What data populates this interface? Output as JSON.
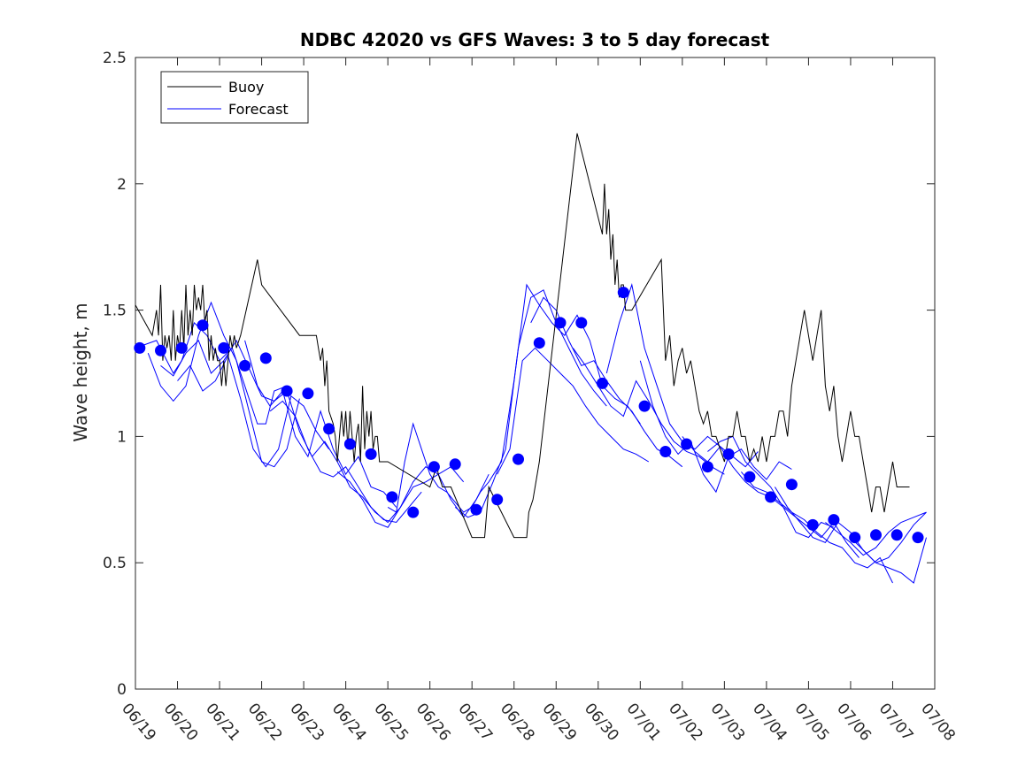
{
  "chart_data": {
    "type": "line",
    "title": "NDBC 42020 vs GFS Waves: 3 to 5 day forecast",
    "xlabel": "",
    "ylabel": "Wave height, m",
    "xlim": [
      "06/19",
      "07/08"
    ],
    "ylim": [
      0,
      2.5
    ],
    "x_tick_labels": [
      "06/19",
      "06/20",
      "06/21",
      "06/22",
      "06/23",
      "06/24",
      "06/25",
      "06/26",
      "06/27",
      "06/28",
      "06/29",
      "06/30",
      "07/01",
      "07/02",
      "07/03",
      "07/04",
      "07/05",
      "07/06",
      "07/07",
      "07/08"
    ],
    "y_ticks": [
      0,
      0.5,
      1,
      1.5,
      2,
      2.5
    ],
    "y_tick_labels": [
      "0",
      "0.5",
      "1",
      "1.5",
      "2",
      "2.5"
    ],
    "grid": false,
    "legend_position": "top-left",
    "legend": [
      {
        "name": "Buoy",
        "color": "#000000"
      },
      {
        "name": "Forecast",
        "color": "#0000ff"
      }
    ],
    "series": [
      {
        "name": "Buoy",
        "color": "#000000",
        "note_x": "day offset from 06/19",
        "x": [
          0,
          0.4,
          0.5,
          0.55,
          0.6,
          0.65,
          0.7,
          0.75,
          0.8,
          0.85,
          0.9,
          0.95,
          1.0,
          1.05,
          1.1,
          1.15,
          1.2,
          1.25,
          1.3,
          1.35,
          1.4,
          1.45,
          1.5,
          1.55,
          1.6,
          1.65,
          1.7,
          1.75,
          1.8,
          1.85,
          1.9,
          1.95,
          2.0,
          2.05,
          2.1,
          2.15,
          2.2,
          2.25,
          2.3,
          2.35,
          2.4,
          2.5,
          2.9,
          3.0,
          3.9,
          4.3,
          4.35,
          4.4,
          4.45,
          4.5,
          4.55,
          4.6,
          4.7,
          4.75,
          4.8,
          4.85,
          4.9,
          4.95,
          5.0,
          5.05,
          5.1,
          5.15,
          5.2,
          5.25,
          5.3,
          5.35,
          5.4,
          5.45,
          5.5,
          5.55,
          5.6,
          5.65,
          5.7,
          5.75,
          5.8,
          6.0,
          7.0,
          7.1,
          7.15,
          7.2,
          7.3,
          7.4,
          7.5,
          8.0,
          8.3,
          8.4,
          9.0,
          9.3,
          9.35,
          9.45,
          9.5,
          9.6,
          10.5,
          11.1,
          11.15,
          11.2,
          11.25,
          11.3,
          11.35,
          11.4,
          11.45,
          11.5,
          11.55,
          11.6,
          11.65,
          11.7,
          11.75,
          11.8,
          12.5,
          12.6,
          12.7,
          12.8,
          12.9,
          13.0,
          13.1,
          13.2,
          13.3,
          13.4,
          13.5,
          13.6,
          13.7,
          13.8,
          13.9,
          14.0,
          14.1,
          14.2,
          14.3,
          14.4,
          14.5,
          14.6,
          14.7,
          14.8,
          14.9,
          15.0,
          15.1,
          15.2,
          15.3,
          15.4,
          15.5,
          15.6,
          15.7,
          15.8,
          15.9,
          16.0,
          16.1,
          16.2,
          16.3,
          16.4,
          16.5,
          16.6,
          16.7,
          16.8,
          16.9,
          17.0,
          17.1,
          17.2,
          17.3,
          17.4,
          17.5,
          17.6,
          17.7,
          17.8,
          17.9,
          18.0,
          18.1,
          18.2,
          18.3,
          18.4
        ],
        "y": [
          1.52,
          1.4,
          1.5,
          1.4,
          1.6,
          1.3,
          1.4,
          1.35,
          1.4,
          1.3,
          1.5,
          1.3,
          1.4,
          1.35,
          1.5,
          1.35,
          1.6,
          1.4,
          1.5,
          1.4,
          1.6,
          1.5,
          1.55,
          1.5,
          1.6,
          1.45,
          1.5,
          1.3,
          1.4,
          1.3,
          1.35,
          1.3,
          1.3,
          1.2,
          1.3,
          1.2,
          1.3,
          1.4,
          1.35,
          1.4,
          1.35,
          1.4,
          1.7,
          1.6,
          1.4,
          1.4,
          1.35,
          1.3,
          1.35,
          1.2,
          1.3,
          1.1,
          1.05,
          1.0,
          0.9,
          1.0,
          1.1,
          1.0,
          1.1,
          0.95,
          1.1,
          1.0,
          0.9,
          1.0,
          1.05,
          0.9,
          1.2,
          0.95,
          1.1,
          1.0,
          1.1,
          0.95,
          1.0,
          1.0,
          0.9,
          0.9,
          0.8,
          0.85,
          0.9,
          0.85,
          0.8,
          0.8,
          0.8,
          0.6,
          0.6,
          0.8,
          0.6,
          0.6,
          0.7,
          0.75,
          0.8,
          0.9,
          2.2,
          1.8,
          2.0,
          1.8,
          1.9,
          1.7,
          1.8,
          1.6,
          1.7,
          1.55,
          1.6,
          1.6,
          1.5,
          1.5,
          1.5,
          1.5,
          1.7,
          1.3,
          1.4,
          1.2,
          1.3,
          1.35,
          1.25,
          1.3,
          1.2,
          1.1,
          1.05,
          1.1,
          1.0,
          1.0,
          0.95,
          0.9,
          1.0,
          1.0,
          1.1,
          1.0,
          1.0,
          0.9,
          0.95,
          0.9,
          1.0,
          0.9,
          1.0,
          1.0,
          1.1,
          1.1,
          1.0,
          1.2,
          1.3,
          1.4,
          1.5,
          1.4,
          1.3,
          1.4,
          1.5,
          1.2,
          1.1,
          1.2,
          1.0,
          0.9,
          1.0,
          1.1,
          1.0,
          1.0,
          0.9,
          0.8,
          0.7,
          0.8,
          0.8,
          0.7,
          0.8,
          0.9,
          0.8,
          0.8,
          0.8,
          0.8
        ]
      },
      {
        "name": "Forecast",
        "color": "#0000ff",
        "marker_x": [
          0.1,
          0.6,
          1.1,
          1.6,
          2.1,
          2.6,
          3.1,
          3.6,
          4.1,
          4.6,
          5.1,
          5.6,
          6.1,
          6.6,
          7.1,
          7.6,
          8.1,
          8.6,
          9.1,
          9.6,
          10.1,
          10.6,
          11.1,
          11.6,
          12.1,
          12.6,
          13.1,
          13.6,
          14.1,
          14.6,
          15.1,
          15.6,
          16.1,
          16.6,
          17.1,
          17.6,
          18.1,
          18.6
        ],
        "marker_y": [
          1.35,
          1.34,
          1.35,
          1.44,
          1.35,
          1.28,
          1.31,
          1.18,
          1.17,
          1.03,
          0.97,
          0.93,
          0.76,
          0.7,
          0.88,
          0.89,
          0.71,
          0.75,
          0.91,
          1.37,
          1.45,
          1.45,
          1.21,
          1.57,
          1.12,
          0.94,
          0.97,
          0.88,
          0.93,
          0.84,
          0.76,
          0.81,
          0.65,
          0.67,
          0.6,
          0.61,
          0.61,
          0.6
        ]
      }
    ],
    "forecast_runs": [
      {
        "x": [
          0,
          0.5,
          0.9,
          1.1,
          1.4,
          1.7,
          2.0,
          2.3,
          2.6,
          2.9,
          3.1,
          3.3,
          3.6
        ],
        "y": [
          1.35,
          1.38,
          1.25,
          1.3,
          1.45,
          1.4,
          1.3,
          1.35,
          1.2,
          1.05,
          1.05,
          1.18,
          1.2
        ]
      },
      {
        "x": [
          0.3,
          0.6,
          0.9,
          1.2,
          1.5,
          1.8,
          2.1,
          2.4,
          2.7,
          3.0,
          3.3,
          3.6,
          3.9
        ],
        "y": [
          1.33,
          1.2,
          1.14,
          1.2,
          1.4,
          1.53,
          1.4,
          1.3,
          1.1,
          0.9,
          0.88,
          0.95,
          1.15
        ]
      },
      {
        "x": [
          0.6,
          0.9,
          1.2,
          1.5,
          1.8,
          2.1,
          2.4,
          2.7,
          3.0,
          3.3,
          3.6,
          3.9,
          4.2
        ],
        "y": [
          1.28,
          1.24,
          1.33,
          1.38,
          1.25,
          1.3,
          1.38,
          1.27,
          1.16,
          1.14,
          1.18,
          1.02,
          0.92
        ]
      },
      {
        "x": [
          1.0,
          1.3,
          1.6,
          1.9,
          2.2,
          2.5,
          2.8,
          3.1,
          3.4,
          3.7,
          4.0,
          4.3,
          4.6
        ],
        "y": [
          1.22,
          1.28,
          1.18,
          1.22,
          1.32,
          1.15,
          0.95,
          0.88,
          0.95,
          1.16,
          1.12,
          1.02,
          0.95
        ]
      },
      {
        "x": [
          2.6,
          2.9,
          3.2,
          3.5,
          3.8,
          4.1,
          4.4,
          4.7,
          5.0,
          5.3,
          5.6,
          5.9,
          6.2
        ],
        "y": [
          1.38,
          1.2,
          1.12,
          1.18,
          1.0,
          0.92,
          1.1,
          0.95,
          0.85,
          0.92,
          0.8,
          0.78,
          0.72
        ]
      },
      {
        "x": [
          3.2,
          3.5,
          3.8,
          4.1,
          4.4,
          4.7,
          5.0,
          5.3,
          5.6,
          5.9,
          6.2,
          6.5,
          6.8
        ],
        "y": [
          1.1,
          1.14,
          1.08,
          0.95,
          0.86,
          0.84,
          0.88,
          0.8,
          0.72,
          0.67,
          0.66,
          0.72,
          0.78
        ]
      },
      {
        "x": [
          4.2,
          4.5,
          4.8,
          5.1,
          5.4,
          5.7,
          6.0,
          6.3,
          6.6,
          6.9,
          7.2,
          7.5,
          7.8
        ],
        "y": [
          0.92,
          0.98,
          0.9,
          0.8,
          0.76,
          0.7,
          0.66,
          0.72,
          0.8,
          0.82,
          0.85,
          0.88,
          0.82
        ]
      },
      {
        "x": [
          4.8,
          5.1,
          5.4,
          5.7,
          6.0,
          6.3,
          6.6,
          6.9,
          7.2,
          7.5,
          7.8,
          8.1,
          8.4
        ],
        "y": [
          0.86,
          0.82,
          0.75,
          0.66,
          0.64,
          0.72,
          0.82,
          0.88,
          0.85,
          0.75,
          0.68,
          0.75,
          0.85
        ]
      },
      {
        "x": [
          6.0,
          6.2,
          6.4,
          6.6,
          6.8,
          7.0,
          7.2,
          7.4,
          7.6,
          7.8,
          8.0,
          8.2,
          8.4
        ],
        "y": [
          0.72,
          0.7,
          0.9,
          1.05,
          0.95,
          0.85,
          0.8,
          0.78,
          0.74,
          0.7,
          0.72,
          0.78,
          0.82
        ]
      },
      {
        "x": [
          7.6,
          7.9,
          8.2,
          8.5,
          8.8,
          9.1,
          9.4,
          9.7,
          10.0,
          10.3,
          10.6,
          10.9,
          11.2
        ],
        "y": [
          0.72,
          0.68,
          0.7,
          0.82,
          0.95,
          1.35,
          1.55,
          1.58,
          1.45,
          1.35,
          1.25,
          1.18,
          1.12
        ]
      },
      {
        "x": [
          8.4,
          8.7,
          9.0,
          9.3,
          9.6,
          9.9,
          10.2,
          10.5,
          10.8,
          11.1,
          11.4,
          11.7,
          12.0
        ],
        "y": [
          0.82,
          0.9,
          1.22,
          1.6,
          1.52,
          1.45,
          1.4,
          1.48,
          1.38,
          1.2,
          1.15,
          1.12,
          1.05
        ]
      },
      {
        "x": [
          8.6,
          8.9,
          9.2,
          9.5,
          9.8,
          10.1,
          10.4,
          10.7,
          11.0,
          11.3,
          11.6,
          11.9,
          12.2
        ],
        "y": [
          0.85,
          0.95,
          1.3,
          1.35,
          1.3,
          1.25,
          1.2,
          1.12,
          1.05,
          1.0,
          0.95,
          0.93,
          0.9
        ]
      },
      {
        "x": [
          9.4,
          9.7,
          10.0,
          10.3,
          10.6,
          10.9,
          11.2,
          11.5,
          11.8,
          12.1,
          12.4,
          12.7,
          13.0
        ],
        "y": [
          1.45,
          1.55,
          1.5,
          1.38,
          1.28,
          1.3,
          1.22,
          1.15,
          1.1,
          1.02,
          0.95,
          0.92,
          0.88
        ]
      },
      {
        "x": [
          10.4,
          10.7,
          11.0,
          11.3,
          11.6,
          11.9,
          12.2,
          12.5,
          12.8,
          13.1,
          13.4,
          13.7,
          14.0
        ],
        "y": [
          1.35,
          1.28,
          1.2,
          1.12,
          1.08,
          1.22,
          1.14,
          1.05,
          0.98,
          0.94,
          0.92,
          0.88,
          0.85
        ]
      },
      {
        "x": [
          11.2,
          11.5,
          11.8,
          12.1,
          12.4,
          12.7,
          13.0,
          13.3,
          13.6,
          13.9,
          14.2,
          14.5,
          14.8
        ],
        "y": [
          1.25,
          1.45,
          1.6,
          1.35,
          1.2,
          1.05,
          0.98,
          0.95,
          1.0,
          0.96,
          0.92,
          0.88,
          0.94
        ]
      },
      {
        "x": [
          12.0,
          12.3,
          12.6,
          12.9,
          13.2,
          13.5,
          13.8,
          14.1,
          14.4,
          14.7,
          15.0,
          15.3,
          15.6
        ],
        "y": [
          1.3,
          1.12,
          1.0,
          0.93,
          0.98,
          0.85,
          0.78,
          0.92,
          0.95,
          0.88,
          0.83,
          0.9,
          0.87
        ]
      },
      {
        "x": [
          13.0,
          13.3,
          13.6,
          13.9,
          14.2,
          14.5,
          14.8,
          15.1,
          15.4,
          15.7,
          16.0,
          16.3,
          16.6
        ],
        "y": [
          1.0,
          0.94,
          0.9,
          0.96,
          0.88,
          0.82,
          0.78,
          0.76,
          0.72,
          0.62,
          0.6,
          0.66,
          0.64
        ]
      },
      {
        "x": [
          13.6,
          13.9,
          14.2,
          14.5,
          14.8,
          15.1,
          15.4,
          15.7,
          16.0,
          16.3,
          16.6,
          16.9,
          17.2
        ],
        "y": [
          0.94,
          0.98,
          1.0,
          0.9,
          0.85,
          0.8,
          0.72,
          0.68,
          0.64,
          0.6,
          0.66,
          0.58,
          0.52
        ]
      },
      {
        "x": [
          14.4,
          14.7,
          15.0,
          15.3,
          15.6,
          15.9,
          16.2,
          16.5,
          16.8,
          17.1,
          17.4,
          17.7,
          18.0
        ],
        "y": [
          0.86,
          0.8,
          0.78,
          0.74,
          0.7,
          0.67,
          0.62,
          0.58,
          0.56,
          0.5,
          0.48,
          0.52,
          0.42
        ]
      },
      {
        "x": [
          15.2,
          15.5,
          15.8,
          16.1,
          16.4,
          16.7,
          17.0,
          17.3,
          17.6,
          17.9,
          18.2,
          18.5,
          18.8
        ],
        "y": [
          0.8,
          0.72,
          0.66,
          0.6,
          0.58,
          0.66,
          0.62,
          0.55,
          0.5,
          0.48,
          0.46,
          0.42,
          0.6
        ]
      },
      {
        "x": [
          16.4,
          16.7,
          17.0,
          17.3,
          17.6,
          17.9,
          18.2,
          18.5,
          18.8
        ],
        "y": [
          0.66,
          0.62,
          0.58,
          0.53,
          0.56,
          0.62,
          0.66,
          0.68,
          0.7
        ]
      },
      {
        "x": [
          17.0,
          17.3,
          17.6,
          17.9,
          18.2,
          18.5,
          18.8
        ],
        "y": [
          0.6,
          0.55,
          0.5,
          0.52,
          0.58,
          0.65,
          0.7
        ]
      }
    ]
  }
}
